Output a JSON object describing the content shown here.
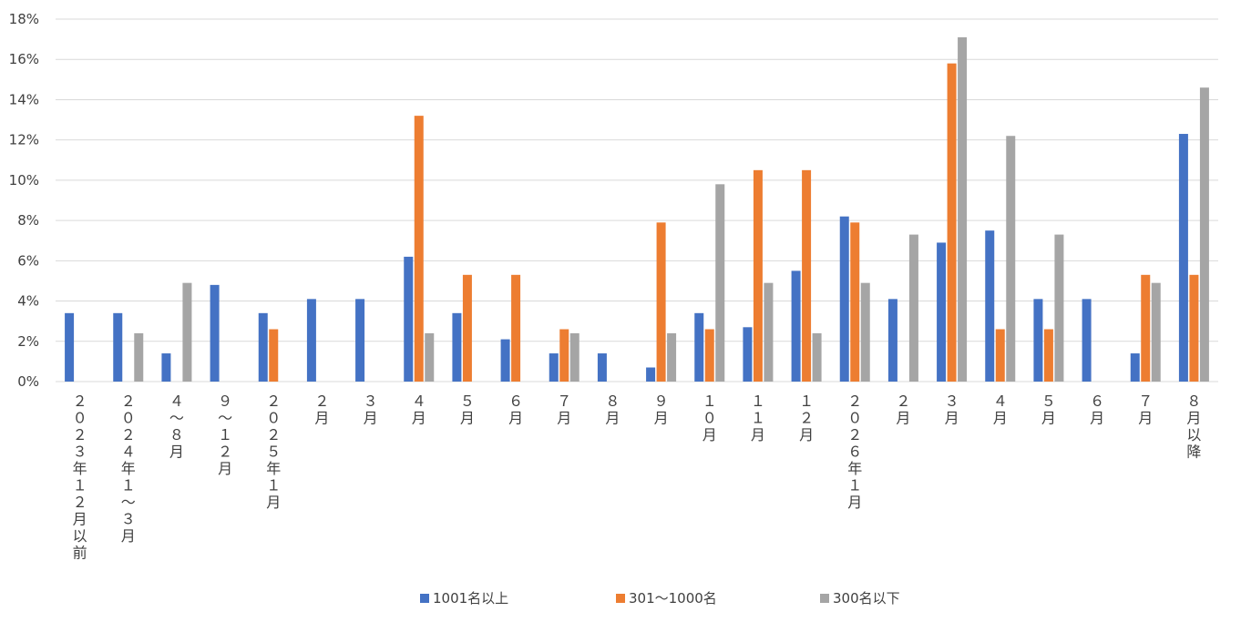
{
  "chart_data": {
    "type": "bar",
    "categories": [
      "２０２３年１２月以前",
      "２０２４年１～３月",
      "４～８月",
      "９～１２月",
      "２０２５年１月",
      "２月",
      "３月",
      "４月",
      "５月",
      "６月",
      "７月",
      "８月",
      "９月",
      "１０月",
      "１１月",
      "１２月",
      "２０２６年１月",
      "２月",
      "３月",
      "４月",
      "５月",
      "６月",
      "７月",
      "８月以降"
    ],
    "series": [
      {
        "name": "1001名以上",
        "color": "#4472C4",
        "values": [
          3.4,
          3.4,
          1.4,
          4.8,
          3.4,
          4.1,
          4.1,
          6.2,
          3.4,
          2.1,
          1.4,
          1.4,
          0.7,
          3.4,
          2.7,
          5.5,
          8.2,
          4.1,
          6.9,
          7.5,
          4.1,
          4.1,
          1.4,
          12.3
        ]
      },
      {
        "name": "301～1000名",
        "color": "#ED7D31",
        "values": [
          0,
          0,
          0,
          0,
          2.6,
          0,
          0,
          13.2,
          5.3,
          5.3,
          2.6,
          0,
          7.9,
          2.6,
          10.5,
          10.5,
          7.9,
          0,
          15.8,
          2.6,
          2.6,
          0,
          5.3,
          5.3
        ]
      },
      {
        "name": "300名以下",
        "color": "#A5A5A5",
        "values": [
          0,
          2.4,
          4.9,
          0,
          0,
          0,
          0,
          2.4,
          0,
          0,
          2.4,
          0,
          2.4,
          9.8,
          4.9,
          2.4,
          4.9,
          7.3,
          17.1,
          12.2,
          7.3,
          0,
          4.9,
          14.6
        ]
      }
    ],
    "y_unit": "%",
    "ylim": [
      0,
      18
    ],
    "yticks": [
      0,
      2,
      4,
      6,
      8,
      10,
      12,
      14,
      16,
      18
    ],
    "grid": true,
    "legend_position": "bottom"
  }
}
